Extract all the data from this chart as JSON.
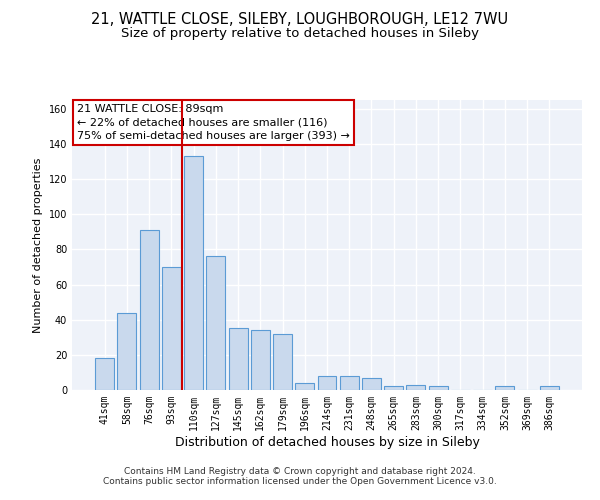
{
  "title": "21, WATTLE CLOSE, SILEBY, LOUGHBOROUGH, LE12 7WU",
  "subtitle": "Size of property relative to detached houses in Sileby",
  "xlabel": "Distribution of detached houses by size in Sileby",
  "ylabel": "Number of detached properties",
  "categories": [
    "41sqm",
    "58sqm",
    "76sqm",
    "93sqm",
    "110sqm",
    "127sqm",
    "145sqm",
    "162sqm",
    "179sqm",
    "196sqm",
    "214sqm",
    "231sqm",
    "248sqm",
    "265sqm",
    "283sqm",
    "300sqm",
    "317sqm",
    "334sqm",
    "352sqm",
    "369sqm",
    "386sqm"
  ],
  "values": [
    18,
    44,
    91,
    70,
    133,
    76,
    35,
    34,
    32,
    4,
    8,
    8,
    7,
    2,
    3,
    2,
    0,
    0,
    2,
    0,
    2
  ],
  "bar_color": "#c9d9ed",
  "bar_edge_color": "#5b9bd5",
  "vline_color": "#cc0000",
  "vline_pos": 3.5,
  "annotation_box_text": "21 WATTLE CLOSE: 89sqm\n← 22% of detached houses are smaller (116)\n75% of semi-detached houses are larger (393) →",
  "ylim": [
    0,
    165
  ],
  "yticks": [
    0,
    20,
    40,
    60,
    80,
    100,
    120,
    140,
    160
  ],
  "background_color": "#eef2f9",
  "grid_color": "#ffffff",
  "footer_line1": "Contains HM Land Registry data © Crown copyright and database right 2024.",
  "footer_line2": "Contains public sector information licensed under the Open Government Licence v3.0.",
  "title_fontsize": 10.5,
  "subtitle_fontsize": 9.5,
  "xlabel_fontsize": 9,
  "ylabel_fontsize": 8,
  "tick_fontsize": 7,
  "annotation_fontsize": 8,
  "footer_fontsize": 6.5
}
